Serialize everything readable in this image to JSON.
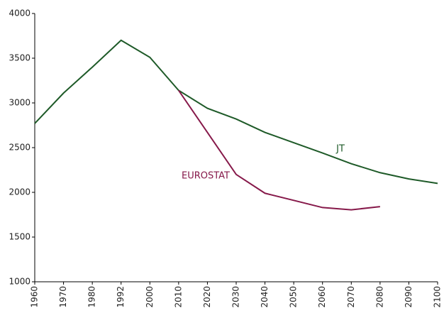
{
  "chart_data": {
    "type": "line",
    "categories": [
      "1960",
      "1970",
      "1980",
      "1992",
      "2000",
      "2010",
      "2020",
      "2030",
      "2040",
      "2050",
      "2060",
      "2070",
      "2080",
      "2090",
      "2100"
    ],
    "series": [
      {
        "name": "JT",
        "color": "#1e5a28",
        "values": [
          2770,
          3110,
          3400,
          3700,
          3510,
          3140,
          2940,
          2820,
          2670,
          2555,
          2440,
          2320,
          2220,
          2150,
          2100
        ]
      },
      {
        "name": "EUROSTAT",
        "color": "#86194a",
        "values": [
          null,
          null,
          null,
          null,
          null,
          3140,
          2670,
          2200,
          1990,
          1910,
          1830,
          1805,
          1840,
          null,
          null
        ]
      }
    ],
    "ylim": [
      1000,
      4000
    ],
    "yticks": [
      1000,
      1500,
      2000,
      2500,
      3000,
      3500,
      4000
    ]
  }
}
